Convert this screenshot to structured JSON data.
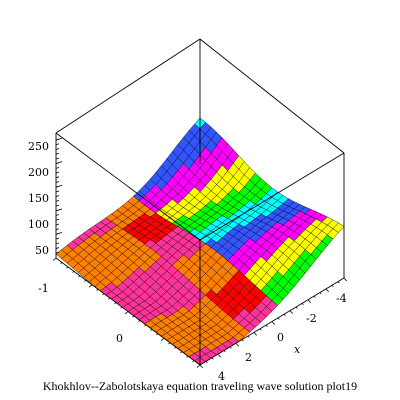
{
  "caption": "Khokhlov--Zabolotskaya equation traveling wave solution plot19",
  "chart_data": {
    "type": "surface3d",
    "title": "Khokhlov--Zabolotskaya equation traveling wave solution plot19",
    "z_axis": {
      "ticks": [
        "50",
        "100",
        "150",
        "200",
        "250"
      ],
      "values": [
        50,
        100,
        150,
        200,
        250
      ]
    },
    "x_axis": {
      "label": "x",
      "ticks": [
        "-4",
        "-2",
        "0",
        "2",
        "4"
      ],
      "values": [
        -4,
        -2,
        0,
        2,
        4
      ]
    },
    "y_axis": {
      "label": "",
      "ticks": [
        "-1",
        "0"
      ],
      "values": [
        -1,
        0
      ]
    },
    "box": true,
    "colormap": [
      "#ff7f00",
      "#ff3399",
      "#ff0000",
      "#ffff00",
      "#00ff00",
      "#00ffff",
      "#3355ff",
      "#ff00ff"
    ],
    "mesh": "black wireframe"
  }
}
